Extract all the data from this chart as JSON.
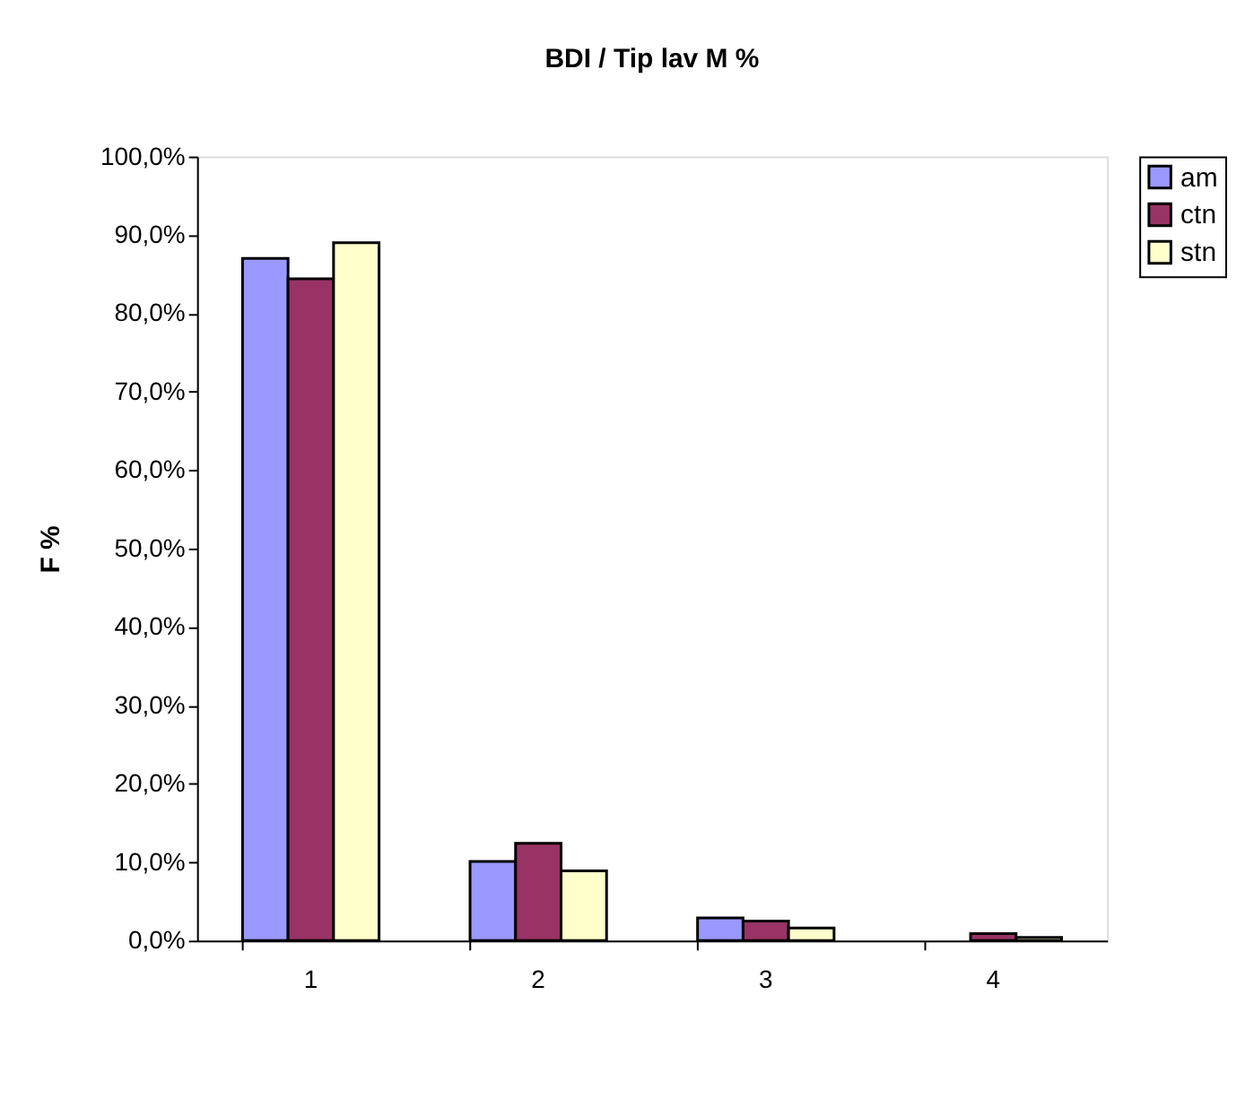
{
  "chart_data": {
    "type": "bar",
    "title": "BDI / Tip lav M %",
    "ylabel": "F %",
    "categories": [
      "1",
      "2",
      "3",
      "4"
    ],
    "series": [
      {
        "name": "am",
        "color": "#9999ff",
        "values": [
          87.0,
          10.1,
          2.9,
          null
        ]
      },
      {
        "name": "ctn",
        "color": "#993366",
        "values": [
          84.4,
          12.4,
          2.5,
          0.9
        ]
      },
      {
        "name": "stn",
        "color": "#ffffcc",
        "values": [
          89.0,
          8.9,
          1.6,
          0.4
        ]
      }
    ],
    "ylim": [
      0,
      100
    ],
    "yticks": [
      {
        "value": 0,
        "label": "0,0%"
      },
      {
        "value": 10,
        "label": "10,0%"
      },
      {
        "value": 20,
        "label": "20,0%"
      },
      {
        "value": 30,
        "label": "30,0%"
      },
      {
        "value": 40,
        "label": "40,0%"
      },
      {
        "value": 50,
        "label": "50,0%"
      },
      {
        "value": 60,
        "label": "60,0%"
      },
      {
        "value": 70,
        "label": "70,0%"
      },
      {
        "value": 80,
        "label": "80,0%"
      },
      {
        "value": 90,
        "label": "90,0%"
      },
      {
        "value": 100,
        "label": "100,0%"
      }
    ],
    "grid": false,
    "legend": "right"
  }
}
